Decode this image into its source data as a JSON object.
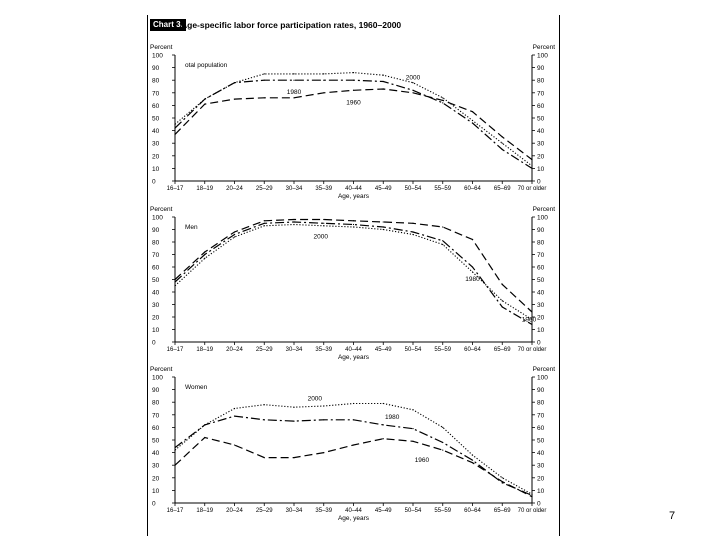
{
  "figure": {
    "chart_label": "Chart 3.",
    "title": "Age-specific labor force participation rates, 1960–2000"
  },
  "page_number": "7",
  "chart_data": [
    {
      "type": "line",
      "panel_label": "otal population",
      "ylabel_left": "Percent",
      "ylabel_right": "Percent",
      "xlabel": "Age, years",
      "ylim": [
        0,
        100
      ],
      "yticks": [
        0,
        10,
        20,
        30,
        40,
        50,
        60,
        70,
        80,
        90,
        100
      ],
      "categories": [
        "16–17",
        "18–19",
        "20–24",
        "25–29",
        "30–34",
        "35–39",
        "40–44",
        "45–49",
        "50–54",
        "55–59",
        "60–64",
        "65–69",
        "70 or older"
      ],
      "series": [
        {
          "name": "2000",
          "style": "dotted",
          "values": [
            45,
            65,
            78,
            85,
            85,
            85,
            86,
            84,
            78,
            66,
            48,
            30,
            12
          ]
        },
        {
          "name": "1980",
          "style": "dashdot",
          "values": [
            42,
            65,
            78,
            80,
            80,
            80,
            80,
            79,
            72,
            62,
            46,
            25,
            10
          ]
        },
        {
          "name": "1960",
          "style": "dashed",
          "values": [
            37,
            61,
            65,
            66,
            66,
            70,
            72,
            73,
            70,
            64,
            55,
            35,
            17
          ]
        }
      ],
      "series_labels": [
        "2000",
        "1980",
        "1960"
      ]
    },
    {
      "type": "line",
      "panel_label": "Men",
      "ylabel_left": "Percent",
      "ylabel_right": "Percent",
      "xlabel": "Age, years",
      "ylim": [
        0,
        100
      ],
      "yticks": [
        0,
        10,
        20,
        30,
        40,
        50,
        60,
        70,
        80,
        90,
        100
      ],
      "categories": [
        "16–17",
        "18–19",
        "20–24",
        "25–29",
        "30–34",
        "35–39",
        "40–44",
        "45–49",
        "50–54",
        "55–59",
        "60–64",
        "65–69",
        "70 or older"
      ],
      "series": [
        {
          "name": "2000",
          "style": "dotted",
          "values": [
            45,
            67,
            84,
            93,
            94,
            93,
            92,
            90,
            86,
            78,
            56,
            33,
            18
          ]
        },
        {
          "name": "1980",
          "style": "dashdot",
          "values": [
            48,
            70,
            86,
            95,
            96,
            95,
            94,
            92,
            88,
            81,
            60,
            28,
            14
          ]
        },
        {
          "name": "1960",
          "style": "dashed",
          "values": [
            50,
            72,
            88,
            97,
            98,
            98,
            97,
            96,
            95,
            92,
            82,
            46,
            24
          ]
        }
      ],
      "series_labels": [
        "2000",
        "1980",
        "1960"
      ]
    },
    {
      "type": "line",
      "panel_label": "Women",
      "ylabel_left": "Percent",
      "ylabel_right": "Percent",
      "xlabel": "Age, years",
      "ylim": [
        0,
        100
      ],
      "yticks": [
        0,
        10,
        20,
        30,
        40,
        50,
        60,
        70,
        80,
        90,
        100
      ],
      "categories": [
        "16–17",
        "18–19",
        "20–24",
        "25–29",
        "30–34",
        "35–39",
        "40–44",
        "45–49",
        "50–54",
        "55–59",
        "60–64",
        "65–69",
        "70 or older"
      ],
      "series": [
        {
          "name": "2000",
          "style": "dotted",
          "values": [
            42,
            62,
            75,
            78,
            76,
            77,
            79,
            79,
            74,
            60,
            38,
            20,
            7
          ]
        },
        {
          "name": "1980",
          "style": "dashdot",
          "values": [
            44,
            62,
            69,
            66,
            65,
            66,
            66,
            62,
            59,
            48,
            34,
            16,
            6
          ]
        },
        {
          "name": "1960",
          "style": "dashed",
          "values": [
            30,
            52,
            46,
            36,
            36,
            40,
            46,
            51,
            49,
            42,
            32,
            17,
            5
          ]
        }
      ],
      "series_labels": [
        "2000",
        "1980",
        "1960"
      ]
    }
  ]
}
